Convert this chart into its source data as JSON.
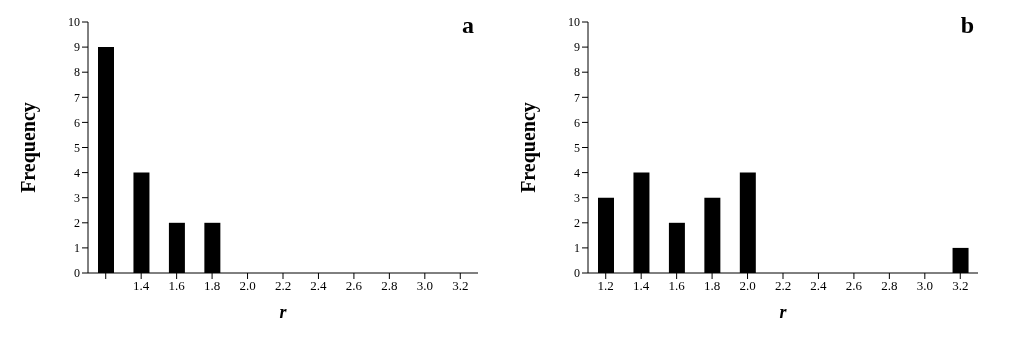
{
  "chart_data": [
    {
      "type": "bar",
      "title": "a",
      "xlabel": "r",
      "ylabel": "Frequency",
      "categories": [
        null,
        "1.4",
        "1.6",
        "1.8",
        "2.0",
        "2.2",
        "2.4",
        "2.6",
        "2.8",
        "3.0",
        "3.2"
      ],
      "values": [
        9,
        4,
        2,
        2,
        0,
        0,
        0,
        0,
        0,
        0,
        0
      ],
      "color": "#000000",
      "ylim": [
        0,
        10
      ],
      "yticks": [
        0,
        1,
        2,
        3,
        4,
        5,
        6,
        7,
        8,
        9,
        10
      ],
      "grid": false,
      "legend": false
    },
    {
      "type": "bar",
      "title": "b",
      "xlabel": "r",
      "ylabel": "Frequency",
      "categories": [
        "1.2",
        "1.4",
        "1.6",
        "1.8",
        "2.0",
        "2.2",
        "2.4",
        "2.6",
        "2.8",
        "3.0",
        "3.2"
      ],
      "values": [
        3,
        4,
        2,
        3,
        4,
        0,
        0,
        0,
        0,
        0,
        1
      ],
      "color": "#000000",
      "ylim": [
        0,
        10
      ],
      "yticks": [
        0,
        1,
        2,
        3,
        4,
        5,
        6,
        7,
        8,
        9,
        10
      ],
      "grid": false,
      "legend": false
    }
  ]
}
